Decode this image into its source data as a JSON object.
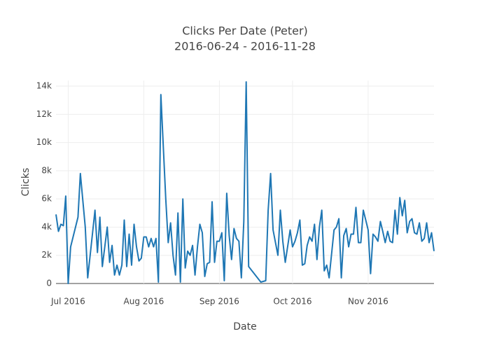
{
  "chart_data": {
    "type": "line",
    "title": "Clicks Per Date (Peter)",
    "subtitle": "2016-06-24 - 2016-11-28",
    "x_label": "Date",
    "y_label": "Clicks",
    "x": [
      "2016-06-26",
      "2016-06-27",
      "2016-06-28",
      "2016-06-29",
      "2016-06-30",
      "2016-07-01",
      "2016-07-02",
      "2016-07-05",
      "2016-07-06",
      "2016-07-08",
      "2016-07-09",
      "2016-07-10",
      "2016-07-12",
      "2016-07-13",
      "2016-07-14",
      "2016-07-15",
      "2016-07-17",
      "2016-07-18",
      "2016-07-19",
      "2016-07-20",
      "2016-07-21",
      "2016-07-22",
      "2016-07-23",
      "2016-07-24",
      "2016-07-25",
      "2016-07-26",
      "2016-07-27",
      "2016-07-28",
      "2016-07-29",
      "2016-07-30",
      "2016-07-31",
      "2016-08-01",
      "2016-08-02",
      "2016-08-03",
      "2016-08-04",
      "2016-08-05",
      "2016-08-06",
      "2016-08-07",
      "2016-08-08",
      "2016-08-10",
      "2016-08-11",
      "2016-08-12",
      "2016-08-13",
      "2016-08-14",
      "2016-08-15",
      "2016-08-16",
      "2016-08-17",
      "2016-08-18",
      "2016-08-19",
      "2016-08-20",
      "2016-08-21",
      "2016-08-22",
      "2016-08-23",
      "2016-08-24",
      "2016-08-25",
      "2016-08-26",
      "2016-08-27",
      "2016-08-28",
      "2016-08-29",
      "2016-08-30",
      "2016-08-31",
      "2016-09-01",
      "2016-09-02",
      "2016-09-03",
      "2016-09-04",
      "2016-09-05",
      "2016-09-06",
      "2016-09-07",
      "2016-09-08",
      "2016-09-09",
      "2016-09-10",
      "2016-09-11",
      "2016-09-12",
      "2016-09-13",
      "2016-09-18",
      "2016-09-20",
      "2016-09-21",
      "2016-09-22",
      "2016-09-23",
      "2016-09-25",
      "2016-09-26",
      "2016-09-27",
      "2016-09-28",
      "2016-09-30",
      "2016-10-01",
      "2016-10-02",
      "2016-10-03",
      "2016-10-04",
      "2016-10-05",
      "2016-10-06",
      "2016-10-07",
      "2016-10-08",
      "2016-10-09",
      "2016-10-10",
      "2016-10-11",
      "2016-10-12",
      "2016-10-13",
      "2016-10-14",
      "2016-10-15",
      "2016-10-16",
      "2016-10-17",
      "2016-10-18",
      "2016-10-19",
      "2016-10-20",
      "2016-10-21",
      "2016-10-22",
      "2016-10-23",
      "2016-10-24",
      "2016-10-25",
      "2016-10-26",
      "2016-10-27",
      "2016-10-28",
      "2016-10-29",
      "2016-10-30",
      "2016-10-31",
      "2016-11-01",
      "2016-11-02",
      "2016-11-03",
      "2016-11-04",
      "2016-11-05",
      "2016-11-06",
      "2016-11-07",
      "2016-11-08",
      "2016-11-09",
      "2016-11-10",
      "2016-11-11",
      "2016-11-12",
      "2016-11-13",
      "2016-11-14",
      "2016-11-15",
      "2016-11-16",
      "2016-11-17",
      "2016-11-18",
      "2016-11-19",
      "2016-11-20",
      "2016-11-21",
      "2016-11-22",
      "2016-11-23",
      "2016-11-24",
      "2016-11-25",
      "2016-11-26",
      "2016-11-27",
      "2016-11-28"
    ],
    "series": [
      {
        "name": "Clicks",
        "color": "#1f77b4",
        "values": [
          4900,
          3700,
          4200,
          4100,
          6200,
          0,
          2600,
          4700,
          7800,
          4000,
          400,
          2000,
          5200,
          2200,
          4700,
          1200,
          4000,
          1500,
          2700,
          600,
          1300,
          600,
          1300,
          4500,
          1200,
          3500,
          1300,
          4200,
          2600,
          1600,
          1800,
          3300,
          3300,
          2600,
          3200,
          2600,
          3200,
          100,
          13400,
          6000,
          2900,
          4300,
          2000,
          600,
          5000,
          100,
          6000,
          1100,
          2300,
          2000,
          2700,
          600,
          2600,
          4200,
          3600,
          500,
          1400,
          1500,
          5800,
          1500,
          3000,
          3000,
          3600,
          200,
          6400,
          3400,
          1700,
          3900,
          3200,
          3000,
          400,
          4400,
          14300,
          1200,
          100,
          200,
          5200,
          7800,
          3800,
          2000,
          5200,
          3000,
          1500,
          3800,
          2600,
          3000,
          3600,
          4500,
          1300,
          1400,
          2700,
          3300,
          3000,
          4200,
          1700,
          4000,
          5200,
          900,
          1300,
          400,
          2100,
          3800,
          4000,
          4600,
          400,
          3400,
          3900,
          2600,
          3500,
          3500,
          5400,
          2900,
          2900,
          5200,
          4500,
          3800,
          700,
          3500,
          3300,
          3000,
          4400,
          3700,
          2900,
          3700,
          3000,
          2900,
          5200,
          3500,
          6100,
          4800,
          5900,
          3600,
          4400,
          4600,
          3600,
          3500,
          4300,
          3000,
          3200,
          4300,
          2900,
          3600,
          2300
        ]
      }
    ],
    "xlim": [
      "2016-06-26",
      "2016-11-28"
    ],
    "xticks": [
      {
        "value": "2016-07-01",
        "label": "Jul 2016"
      },
      {
        "value": "2016-08-01",
        "label": "Aug 2016"
      },
      {
        "value": "2016-09-01",
        "label": "Sep 2016"
      },
      {
        "value": "2016-10-01",
        "label": "Oct 2016"
      },
      {
        "value": "2016-11-01",
        "label": "Nov 2016"
      }
    ],
    "ylim": [
      0,
      14400
    ],
    "yticks": [
      0,
      {
        "value": 2000,
        "label": "2k"
      },
      {
        "value": 4000,
        "label": "4k"
      },
      {
        "value": 6000,
        "label": "6k"
      },
      {
        "value": 8000,
        "label": "8k"
      },
      {
        "value": 10000,
        "label": "10k"
      },
      {
        "value": 12000,
        "label": "12k"
      },
      {
        "value": 14000,
        "label": "14k"
      }
    ],
    "grid": true
  }
}
